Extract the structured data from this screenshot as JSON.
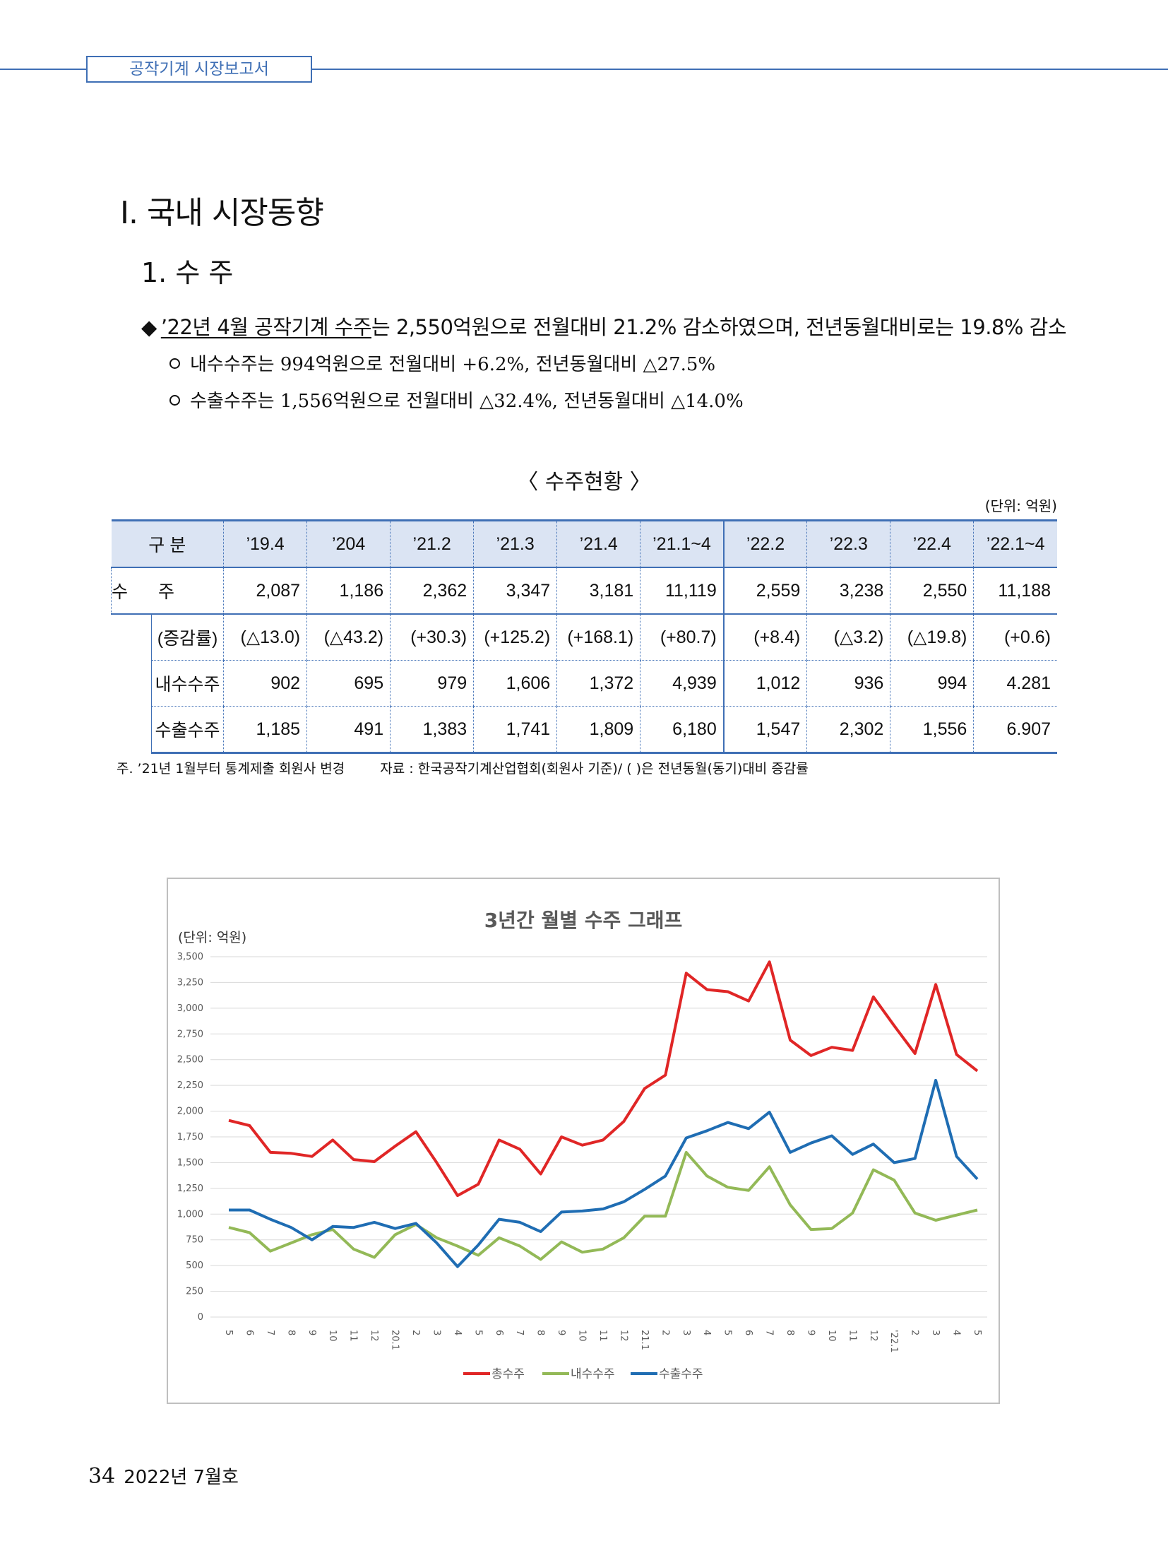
{
  "header": {
    "label": "공작기계 시장보고서"
  },
  "section_title": "Ⅰ. 국내 시장동향",
  "subsection_title": "1. 수 주",
  "summary": {
    "highlight": "’22년 4월 공작기계 수주",
    "rest": "는 2,550억원으로 전월대비 21.2% 감소하였으며, 전년동월대비로는 19.8% 감소",
    "sub1": "내수수주는 994억원으로 전월대비 +6.2%, 전년동월대비 △27.5%",
    "sub2": "수출수주는 1,556억원으로 전월대비 △32.4%, 전년동월대비 △14.0%"
  },
  "table": {
    "title": "〈 수주현황 〉",
    "unit": "(단위: 억원)",
    "header": [
      "구 분",
      "’19.4",
      "’204",
      "’21.2",
      "’21.3",
      "’21.4",
      "’21.1~4",
      "’22.2",
      "’22.3",
      "’22.4",
      "’22.1~4"
    ],
    "main_row": {
      "label": "수 주",
      "values": [
        "2,087",
        "1,186",
        "2,362",
        "3,347",
        "3,181",
        "11,119",
        "2,559",
        "3,238",
        "2,550",
        "11,188"
      ]
    },
    "sub_rows": [
      {
        "label": "(증감률)",
        "values": [
          "(△13.0)",
          "(△43.2)",
          "(+30.3)",
          "(+125.2)",
          "(+168.1)",
          "(+80.7)",
          "(+8.4)",
          "(△3.2)",
          "(△19.8)",
          "(+0.6)"
        ]
      },
      {
        "label": "내수수주",
        "values": [
          "902",
          "695",
          "979",
          "1,606",
          "1,372",
          "4,939",
          "1,012",
          "936",
          "994",
          "4.281"
        ]
      },
      {
        "label": "수출수주",
        "values": [
          "1,185",
          "491",
          "1,383",
          "1,741",
          "1,809",
          "6,180",
          "1,547",
          "2,302",
          "1,556",
          "6.907"
        ]
      }
    ],
    "note": "주. ’21년 1월부터 통계제출 회원사 변경",
    "source": "자료 : 한국공작기계산업협회(회원사 기준)/ ( )은 전년동월(동기)대비 증감률"
  },
  "chart_data": {
    "type": "line",
    "title": "3년간 월별 수주 그래프",
    "unit_label": "(단위: 억원)",
    "ylim": [
      0,
      3500
    ],
    "yticks": [
      "3,500",
      "3,250",
      "3,000",
      "2,750",
      "2,500",
      "2,250",
      "2,000",
      "1,750",
      "1,500",
      "1,250",
      "1,000",
      "750",
      "500",
      "250",
      "0"
    ],
    "ytick_values": [
      3500,
      3250,
      3000,
      2750,
      2500,
      2250,
      2000,
      1750,
      1500,
      1250,
      1000,
      750,
      500,
      250,
      0
    ],
    "categories": [
      "5",
      "6",
      "7",
      "8",
      "9",
      "10",
      "11",
      "12",
      "20.1",
      "2",
      "3",
      "4",
      "5",
      "6",
      "7",
      "8",
      "9",
      "10",
      "11",
      "12",
      "21.1",
      "2",
      "3",
      "4",
      "5",
      "6",
      "7",
      "8",
      "9",
      "10",
      "11",
      "12",
      "'22.1",
      "2",
      "3",
      "4",
      "5"
    ],
    "series": [
      {
        "name": "총수주",
        "color": "#e02626",
        "values": [
          1910,
          1860,
          1600,
          1590,
          1560,
          1720,
          1530,
          1510,
          1660,
          1800,
          1500,
          1180,
          1290,
          1720,
          1630,
          1390,
          1750,
          1670,
          1720,
          1900,
          2220,
          2350,
          3340,
          3180,
          3160,
          3070,
          3450,
          2690,
          2540,
          2620,
          2590,
          3110,
          2830,
          2560,
          3230,
          2550,
          2390
        ]
      },
      {
        "name": "내수수주",
        "color": "#93b957",
        "values": [
          870,
          820,
          640,
          720,
          800,
          850,
          660,
          580,
          800,
          900,
          770,
          690,
          600,
          770,
          690,
          560,
          730,
          630,
          660,
          770,
          980,
          980,
          1600,
          1370,
          1260,
          1230,
          1460,
          1090,
          850,
          860,
          1010,
          1430,
          1330,
          1010,
          940,
          990,
          1040
        ]
      },
      {
        "name": "수출수주",
        "color": "#1f6db3",
        "values": [
          1040,
          1040,
          950,
          870,
          750,
          880,
          870,
          920,
          860,
          910,
          720,
          490,
          700,
          950,
          920,
          830,
          1020,
          1030,
          1050,
          1120,
          1240,
          1370,
          1740,
          1810,
          1890,
          1830,
          1990,
          1600,
          1690,
          1760,
          1580,
          1680,
          1500,
          1540,
          2300,
          1560,
          1340
        ]
      }
    ],
    "legend": "bottom",
    "grid": true
  },
  "footer": {
    "page": "34",
    "issue": "2022년 7월호"
  }
}
